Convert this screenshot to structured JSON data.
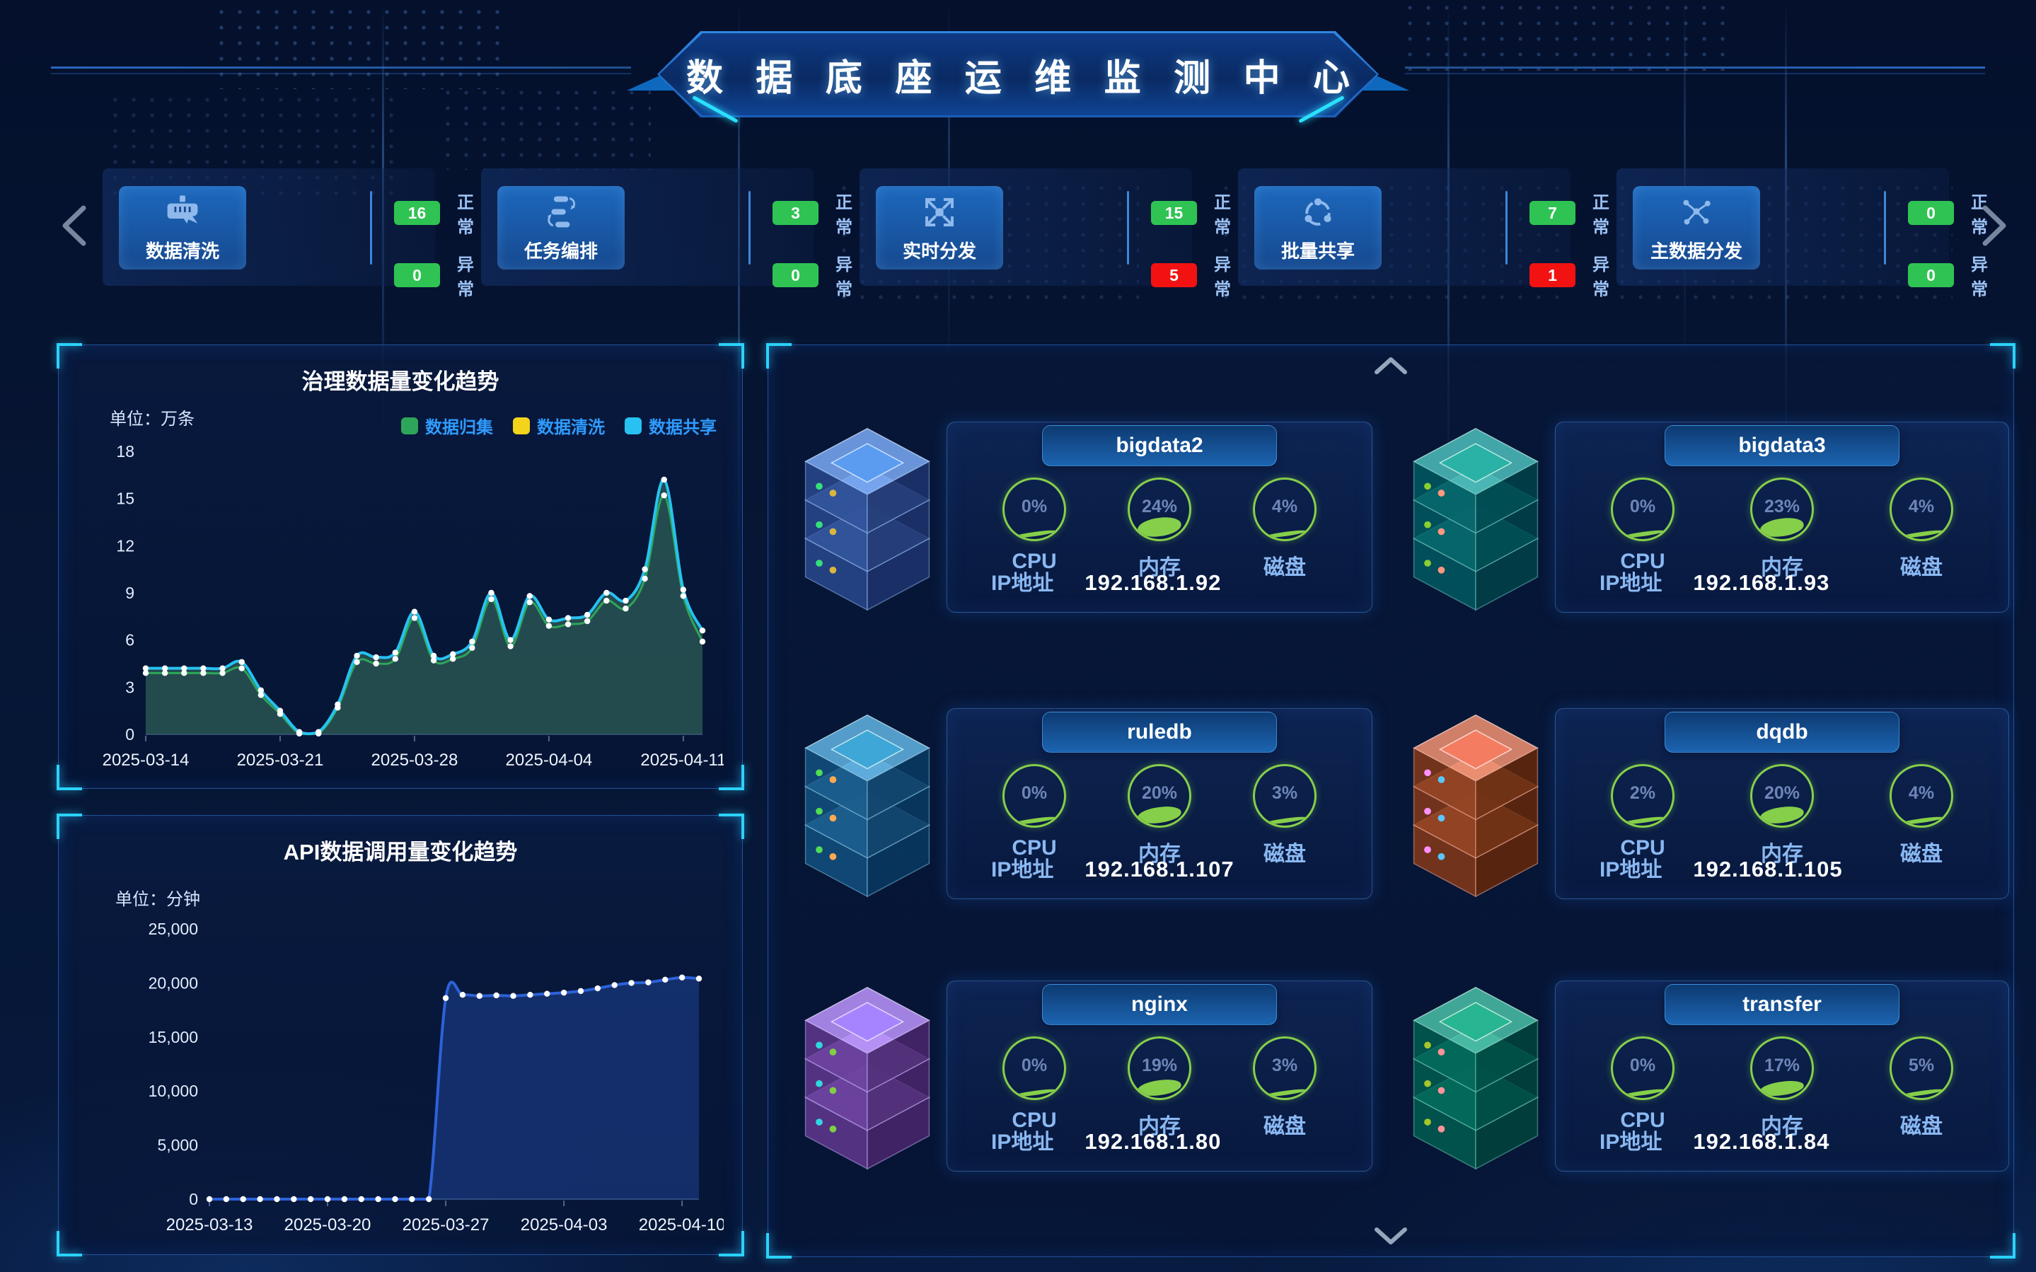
{
  "header": {
    "title": "数 据 底 座 运 维 监 测 中 心"
  },
  "stats_row": {
    "normal_label": "正常",
    "abnormal_label": "异常",
    "cards": [
      {
        "label": "数据清洗",
        "icon": "brush-icon",
        "normal": "16",
        "abnormal": "0",
        "abnormal_alert": false
      },
      {
        "label": "任务编排",
        "icon": "workflow-icon",
        "normal": "3",
        "abnormal": "0",
        "abnormal_alert": false
      },
      {
        "label": "实时分发",
        "icon": "distribute-icon",
        "normal": "15",
        "abnormal": "5",
        "abnormal_alert": true
      },
      {
        "label": "批量共享",
        "icon": "share-icon",
        "normal": "7",
        "abnormal": "1",
        "abnormal_alert": true
      },
      {
        "label": "主数据分发",
        "icon": "master-data-icon",
        "normal": "0",
        "abnormal": "0",
        "abnormal_alert": false
      }
    ]
  },
  "chart_data": [
    {
      "type": "area",
      "title": "治理数据量变化趋势",
      "unit_label": "单位：万条",
      "legend_position": "top-right",
      "x": [
        "2025-03-14",
        "2025-03-15",
        "2025-03-16",
        "2025-03-17",
        "2025-03-18",
        "2025-03-19",
        "2025-03-20",
        "2025-03-21",
        "2025-03-22",
        "2025-03-23",
        "2025-03-24",
        "2025-03-25",
        "2025-03-26",
        "2025-03-27",
        "2025-03-28",
        "2025-03-29",
        "2025-03-30",
        "2025-03-31",
        "2025-04-01",
        "2025-04-02",
        "2025-04-03",
        "2025-04-04",
        "2025-04-05",
        "2025-04-06",
        "2025-04-07",
        "2025-04-08",
        "2025-04-09",
        "2025-04-10",
        "2025-04-11",
        "2025-04-12"
      ],
      "x_tick_indices": [
        0,
        7,
        14,
        21,
        28
      ],
      "ylim": [
        0,
        18
      ],
      "yticks": [
        0,
        3,
        6,
        9,
        12,
        15,
        18
      ],
      "series": [
        {
          "name": "数据归集",
          "color": "#2ea65a",
          "values": [
            3.9,
            3.9,
            3.9,
            3.9,
            3.9,
            4.2,
            2.5,
            1.3,
            0.05,
            0.05,
            1.7,
            4.6,
            4.5,
            4.8,
            7.4,
            4.7,
            4.8,
            5.5,
            8.6,
            5.6,
            8.4,
            6.9,
            7.0,
            7.2,
            8.5,
            8.0,
            9.9,
            15.2,
            8.8,
            5.9
          ]
        },
        {
          "name": "数据清洗",
          "color": "#f3d41b",
          "hidden": true,
          "values": [
            0,
            0,
            0,
            0,
            0,
            0,
            0,
            0,
            0,
            0,
            0,
            0,
            0,
            0,
            0,
            0,
            0,
            0,
            0,
            0,
            0,
            0,
            0,
            0,
            0,
            0,
            0,
            0,
            0,
            0
          ]
        },
        {
          "name": "数据共享",
          "color": "#27c2f2",
          "fill": "rgba(54,108,94,0.62)",
          "values": [
            4.2,
            4.2,
            4.2,
            4.2,
            4.2,
            4.6,
            2.8,
            1.5,
            0.15,
            0.15,
            1.9,
            5.0,
            4.9,
            5.2,
            7.8,
            5.0,
            5.1,
            5.9,
            9.0,
            6.0,
            8.8,
            7.3,
            7.4,
            7.6,
            9.0,
            8.5,
            10.5,
            16.2,
            9.2,
            6.6
          ]
        }
      ]
    },
    {
      "type": "area",
      "title": "API数据调用量变化趋势",
      "unit_label": "单位：分钟",
      "x": [
        "2025-03-13",
        "2025-03-14",
        "2025-03-15",
        "2025-03-16",
        "2025-03-17",
        "2025-03-18",
        "2025-03-19",
        "2025-03-20",
        "2025-03-21",
        "2025-03-22",
        "2025-03-23",
        "2025-03-24",
        "2025-03-25",
        "2025-03-26",
        "2025-03-27",
        "2025-03-28",
        "2025-03-29",
        "2025-03-30",
        "2025-03-31",
        "2025-04-01",
        "2025-04-02",
        "2025-04-03",
        "2025-04-04",
        "2025-04-05",
        "2025-04-06",
        "2025-04-07",
        "2025-04-08",
        "2025-04-09",
        "2025-04-10",
        "2025-04-11"
      ],
      "x_tick_indices": [
        0,
        7,
        14,
        21,
        28
      ],
      "ylim": [
        0,
        25000
      ],
      "yticks": [
        0,
        5000,
        10000,
        15000,
        20000,
        25000
      ],
      "series": [
        {
          "name": "API调用量",
          "color": "#2d62d9",
          "fill": "rgba(45,95,205,0.33)",
          "values": [
            0,
            0,
            0,
            0,
            0,
            0,
            0,
            0,
            0,
            0,
            0,
            0,
            0,
            0,
            18600,
            18900,
            18800,
            18850,
            18800,
            18900,
            19000,
            19100,
            19250,
            19500,
            19800,
            20000,
            20050,
            20300,
            20500,
            20400
          ]
        }
      ]
    }
  ],
  "server_panel": {
    "cpu_label": "CPU",
    "mem_label": "内存",
    "disk_label": "磁盘",
    "ip_label": "IP地址",
    "servers": [
      {
        "name": "bigdata2",
        "cpu": 0,
        "mem": 24,
        "disk": 4,
        "ip": "192.168.1.92",
        "icon_hue": 0
      },
      {
        "name": "bigdata3",
        "cpu": 0,
        "mem": 23,
        "disk": 4,
        "ip": "192.168.1.93",
        "icon_hue": -48
      },
      {
        "name": "ruledb",
        "cpu": 0,
        "mem": 20,
        "disk": 3,
        "ip": "192.168.1.107",
        "icon_hue": -20
      },
      {
        "name": "dqdb",
        "cpu": 2,
        "mem": 20,
        "disk": 4,
        "ip": "192.168.1.105",
        "icon_hue": 150
      },
      {
        "name": "nginx",
        "cpu": 0,
        "mem": 19,
        "disk": 3,
        "ip": "192.168.1.80",
        "icon_hue": 42
      },
      {
        "name": "transfer",
        "cpu": 0,
        "mem": 17,
        "disk": 5,
        "ip": "192.168.1.84",
        "icon_hue": -60
      }
    ]
  },
  "colors": {
    "normal_badge": "#2fc353",
    "alert_badge": "#f21212",
    "accent_cyan": "#2bd2ff",
    "gauge_ring": "#86cf4a",
    "panel_border": "#1c4d92"
  }
}
